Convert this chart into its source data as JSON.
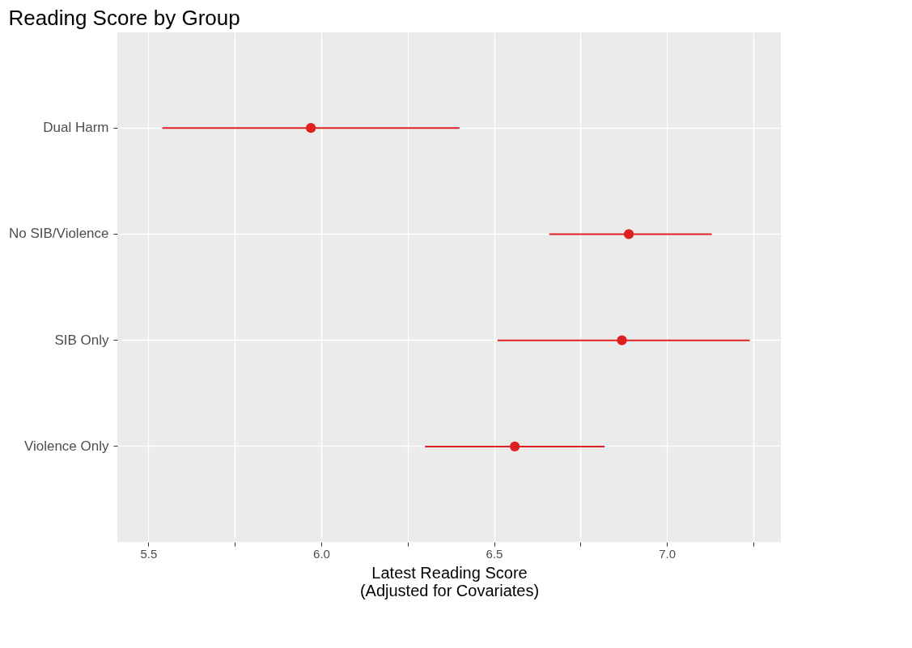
{
  "chart_data": {
    "type": "scatter",
    "title": "Reading Score by Group",
    "xlabel": "Latest Reading Score\n(Adjusted for Covariates)",
    "orientation": "horizontal",
    "categories": [
      "Dual Harm",
      "No SIB/Violence",
      "SIB Only",
      "Violence Only"
    ],
    "series": [
      {
        "color": "#dd2020",
        "values": [
          5.97,
          6.89,
          6.87,
          6.56
        ],
        "errors": [
          [
            5.54,
            6.4
          ],
          [
            6.66,
            7.13
          ],
          [
            6.51,
            7.24
          ],
          [
            6.3,
            6.82
          ]
        ]
      }
    ],
    "xlim": [
      5.41,
      7.33
    ],
    "xticks": [
      5.5,
      {
        "value": 5.75,
        "label": null
      },
      {
        "value": 6.0,
        "label": "6.0"
      },
      {
        "value": 6.25,
        "label": null
      },
      6.5,
      {
        "value": 6.75,
        "label": null
      },
      {
        "value": 7.0,
        "label": "7.0"
      },
      {
        "value": 7.25,
        "label": null
      }
    ],
    "grid": true,
    "marker": "circle",
    "legend": false
  }
}
